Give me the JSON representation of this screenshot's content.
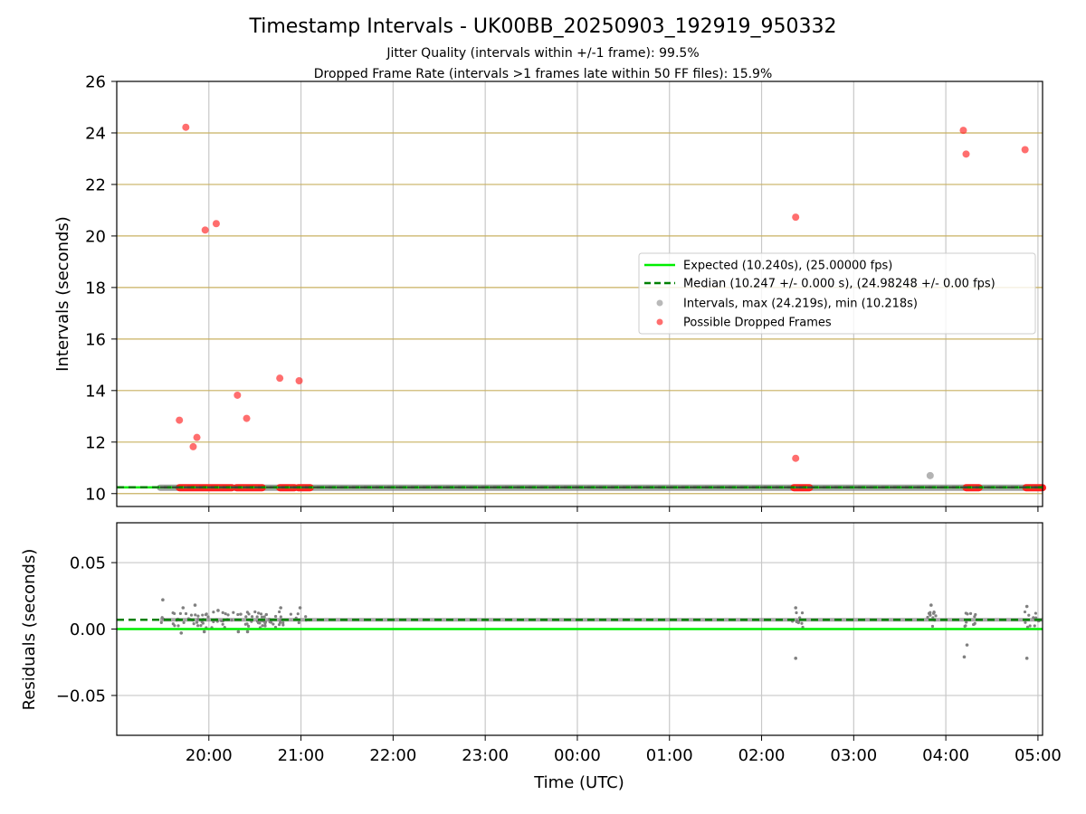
{
  "title": "Timestamp Intervals - UK00BB_20250903_192919_950332",
  "subtitle_lines": [
    "Jitter Quality (intervals within +/-1 frame): 99.5%",
    "Dropped Frame Rate (intervals >1 frames late within 50 FF files): 15.9%"
  ],
  "colors": {
    "expected": "#00ee00",
    "median": "#008000",
    "intervals": "#808080",
    "dropped": "#ff2020",
    "hgrid_top": "#c8b060",
    "grid": "#c8c8c8"
  },
  "chart_data": [
    {
      "type": "scatter",
      "title": "Timestamp Intervals - UK00BB_20250903_192919_950332",
      "ylabel": "Intervals (seconds)",
      "xlim_hours": [
        19.0,
        29.05
      ],
      "ylim": [
        9.5,
        26
      ],
      "yticks": [
        10,
        12,
        14,
        16,
        18,
        20,
        22,
        24,
        26
      ],
      "expected_interval": 10.24,
      "median_interval": 10.247,
      "legend_position": "center-right",
      "legend": [
        "Expected (10.240s), (25.00000 fps)",
        "Median (10.247 +/- 0.000 s), (24.98248 +/- 0.00 fps)",
        "Intervals, max (24.219s), min (10.218s)",
        "Possible Dropped Frames"
      ],
      "series": [
        {
          "name": "Possible Dropped Frames",
          "x": [
            19.68,
            19.75,
            19.83,
            19.87,
            19.96,
            20.08,
            20.31,
            20.41,
            20.77,
            20.98,
            26.37,
            26.37,
            28.19,
            28.22,
            28.86
          ],
          "y": [
            12.85,
            24.22,
            11.82,
            12.18,
            20.23,
            20.48,
            13.82,
            12.92,
            14.48,
            14.38,
            20.73,
            11.37,
            24.1,
            23.18,
            23.35
          ]
        },
        {
          "name": "Intervals, max (24.219s), min (10.218s)",
          "x": [
            27.83
          ],
          "y": [
            10.7
          ]
        }
      ],
      "dropped_baseline_ranges": [
        [
          19.68,
          20.25
        ],
        [
          20.3,
          20.58
        ],
        [
          20.77,
          20.93
        ],
        [
          20.97,
          21.1
        ],
        [
          26.35,
          26.52
        ],
        [
          28.22,
          28.36
        ],
        [
          28.87,
          29.05
        ]
      ],
      "interval_baseline_range": [
        19.47,
        29.05
      ]
    },
    {
      "type": "scatter",
      "xlabel": "Time (UTC)",
      "ylabel": "Residuals (seconds)",
      "xlim_hours": [
        19.0,
        29.05
      ],
      "ylim": [
        -0.08,
        0.08
      ],
      "yticks": [
        0.05,
        0.0,
        -0.05
      ],
      "ytick_labels": [
        "0.05",
        "0.00",
        "−0.05"
      ],
      "expected_residual": 0.0,
      "median_residual": 0.007,
      "xticks_hours": [
        20,
        21,
        22,
        23,
        24,
        25,
        26,
        27,
        28,
        29
      ],
      "xtick_labels": [
        "20:00",
        "21:00",
        "22:00",
        "23:00",
        "00:00",
        "01:00",
        "02:00",
        "03:00",
        "04:00",
        "05:00"
      ],
      "outliers": {
        "x": [
          19.5,
          19.7,
          19.85,
          19.95,
          20.32,
          20.42,
          20.78,
          20.99,
          26.37,
          26.37,
          27.84,
          28.2,
          28.23,
          28.88,
          28.88,
          19.72,
          20.1
        ],
        "y": [
          0.022,
          -0.003,
          0.018,
          -0.002,
          -0.002,
          -0.002,
          0.016,
          0.016,
          0.016,
          -0.022,
          0.018,
          -0.021,
          -0.012,
          0.017,
          -0.022,
          0.016,
          0.014
        ]
      },
      "cluster_ranges": [
        [
          19.47,
          21.1
        ],
        [
          26.33,
          26.45
        ],
        [
          27.8,
          27.9
        ],
        [
          28.18,
          28.35
        ],
        [
          28.85,
          29.05
        ]
      ]
    }
  ]
}
